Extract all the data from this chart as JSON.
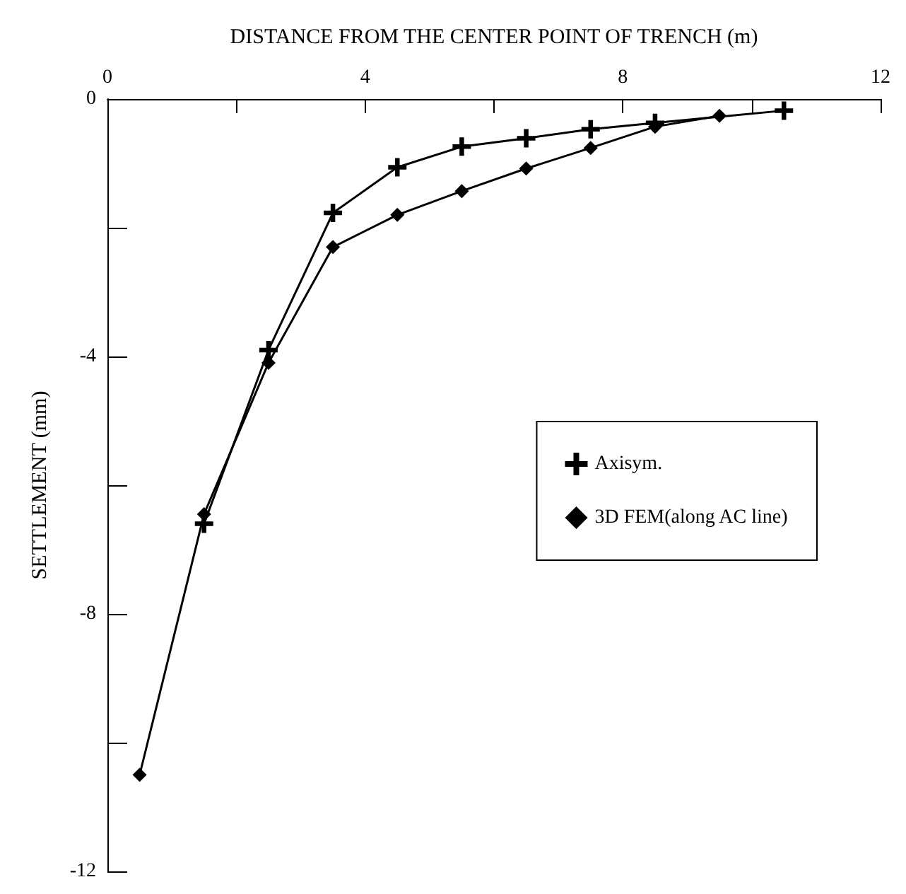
{
  "chart_data": {
    "type": "line",
    "xlabel": "DISTANCE FROM THE CENTER POINT OF TRENCH (m)",
    "ylabel": "SETTLEMENT (mm)",
    "xlim": [
      0,
      12
    ],
    "xticks": [
      0,
      {
        "value": 2,
        "label": null
      },
      4,
      {
        "value": 6,
        "label": null
      },
      8,
      {
        "value": 10,
        "label": null
      },
      12
    ],
    "ylim": [
      -12,
      0
    ],
    "yticks": [
      -12,
      {
        "value": -10,
        "label": null
      },
      -8,
      {
        "value": -6,
        "label": null
      },
      -4,
      {
        "value": -2,
        "label": null
      },
      0
    ],
    "grid": false,
    "legend": "right",
    "line_style": "solid",
    "series": [
      {
        "name": "Axisym.",
        "color": "#000000",
        "marker": "cross",
        "x": [
          1.5,
          2.5,
          3.5,
          4.5,
          5.5,
          6.5,
          7.5,
          8.5,
          10.5
        ],
        "values": [
          -6.6,
          -3.9,
          -1.77,
          -1.06,
          -0.74,
          -0.61,
          -0.47,
          -0.37,
          -0.18
        ]
      },
      {
        "name": "3D FEM(along AC line)",
        "color": "#000000",
        "marker": "diamond",
        "x": [
          0.5,
          1.5,
          2.5,
          3.5,
          4.5,
          5.5,
          6.5,
          7.5,
          8.5,
          9.5
        ],
        "values": [
          -10.5,
          -6.45,
          -4.1,
          -2.3,
          -1.8,
          -1.43,
          -1.08,
          -0.76,
          -0.43,
          -0.26
        ]
      }
    ]
  }
}
